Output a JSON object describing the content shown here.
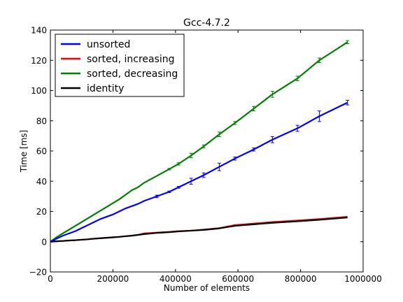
{
  "chart_data": {
    "type": "line",
    "title": "Gcc-4.7.2",
    "xlabel": "Number of elements",
    "ylabel": "Time [ms]",
    "xlim": [
      0,
      1000000
    ],
    "ylim": [
      -20,
      140
    ],
    "xticks": [
      0,
      200000,
      400000,
      600000,
      800000,
      1000000
    ],
    "xtick_labels": [
      "0",
      "200000",
      "400000",
      "600000",
      "800000",
      "1000000"
    ],
    "yticks": [
      -20,
      0,
      20,
      40,
      60,
      80,
      100,
      120,
      140
    ],
    "ytick_labels": [
      "−20",
      "0",
      "20",
      "40",
      "60",
      "80",
      "100",
      "120",
      "140"
    ],
    "grid": false,
    "legend_position": "top-left",
    "x": [
      0,
      20000,
      40000,
      60000,
      80000,
      100000,
      120000,
      140000,
      160000,
      180000,
      200000,
      220000,
      240000,
      260000,
      280000,
      300000,
      340000,
      380000,
      410000,
      450000,
      490000,
      540000,
      590000,
      650000,
      710000,
      790000,
      860000,
      950000
    ],
    "series": [
      {
        "name": "unsorted",
        "color": "#0000ff",
        "values": [
          0,
          2,
          4,
          5.5,
          7,
          9,
          11,
          13,
          15,
          16.5,
          18,
          20,
          22,
          23.5,
          25,
          27,
          30,
          33,
          36,
          40,
          44,
          49.5,
          55,
          61,
          67.5,
          75,
          83,
          92
        ],
        "errors": [
          0,
          0,
          0,
          0,
          0,
          0,
          0,
          0,
          0,
          0,
          0,
          0,
          0,
          0,
          0,
          0,
          0.8,
          0.5,
          0.6,
          2,
          1.5,
          2.5,
          1,
          1,
          2,
          2,
          3.5,
          1.5
        ]
      },
      {
        "name": "sorted, increasing",
        "color": "#ff0000",
        "values": [
          0,
          0.3,
          0.5,
          0.8,
          1,
          1.3,
          1.6,
          2,
          2.3,
          2.6,
          2.9,
          3.2,
          3.6,
          4,
          4.5,
          5.5,
          6,
          6.5,
          7,
          7.3,
          8,
          9,
          11,
          12,
          13,
          14,
          15,
          16.5
        ],
        "errors": []
      },
      {
        "name": "sorted, decreasing",
        "color": "#008000",
        "values": [
          0,
          3,
          5.5,
          8,
          10.5,
          13,
          15.5,
          18,
          20.5,
          23,
          25.5,
          28,
          31,
          34,
          36,
          39,
          43.5,
          48,
          51.5,
          57,
          63,
          71,
          78.5,
          88,
          97.5,
          108,
          120,
          132
        ],
        "errors": [
          0,
          0,
          0,
          0,
          0,
          0,
          0,
          0,
          0,
          0,
          0,
          0,
          0,
          0,
          0,
          0,
          0,
          0.5,
          0.8,
          1.5,
          1,
          1.5,
          1,
          1.5,
          2,
          1.5,
          1.5,
          1
        ]
      },
      {
        "name": "identity",
        "color": "#000000",
        "values": [
          0,
          0.3,
          0.5,
          0.8,
          1,
          1.3,
          1.6,
          2,
          2.3,
          2.6,
          2.9,
          3.2,
          3.6,
          4,
          4.5,
          5,
          5.8,
          6.3,
          6.8,
          7.3,
          7.8,
          8.8,
          10.5,
          11.5,
          12.5,
          13.5,
          14.5,
          16
        ],
        "errors": []
      }
    ]
  }
}
